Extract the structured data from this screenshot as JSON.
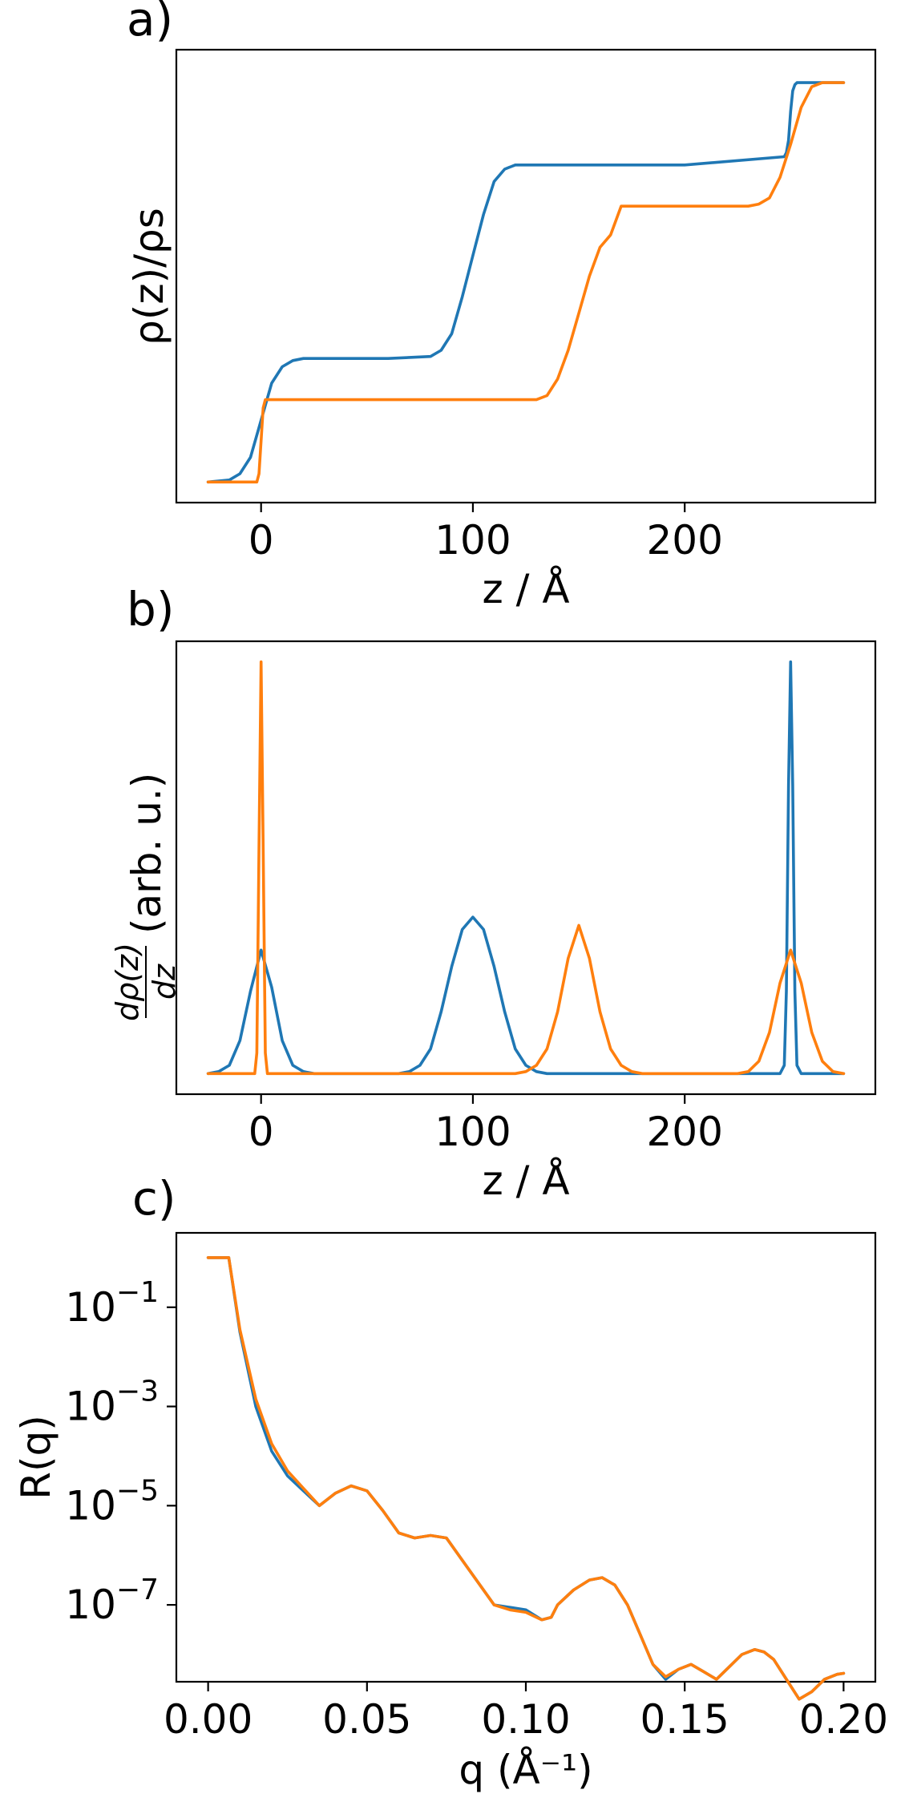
{
  "colors": {
    "series1": "#1f77b4",
    "series2": "#ff7f0e"
  },
  "chart_data": [
    {
      "type": "line",
      "panel_label": "a)",
      "xlabel": "z / Å",
      "ylabel": "ρ(z)/ρs",
      "xlim": [
        -40,
        290
      ],
      "ylim": [
        -0.05,
        1.05
      ],
      "xticks": [
        0,
        100,
        200
      ],
      "y_tick_labels": "none",
      "series": [
        {
          "x": [
            -25,
            -15,
            -10,
            -5,
            0,
            5,
            10,
            15,
            20,
            60,
            80,
            85,
            90,
            95,
            100,
            105,
            110,
            115,
            120,
            200,
            247,
            248,
            249,
            250,
            251,
            252,
            253,
            275
          ],
          "y": [
            0.0,
            0.005,
            0.02,
            0.06,
            0.15,
            0.24,
            0.28,
            0.295,
            0.3,
            0.3,
            0.305,
            0.32,
            0.36,
            0.45,
            0.55,
            0.65,
            0.73,
            0.76,
            0.77,
            0.77,
            0.79,
            0.8,
            0.83,
            0.9,
            0.95,
            0.965,
            0.97,
            0.97
          ]
        },
        {
          "x": [
            -25,
            -2,
            -1,
            0,
            1,
            2,
            5,
            130,
            135,
            140,
            145,
            150,
            155,
            160,
            165,
            170,
            230,
            235,
            240,
            245,
            250,
            255,
            260,
            265,
            275
          ],
          "y": [
            0.0,
            0.0,
            0.02,
            0.1,
            0.18,
            0.2,
            0.2,
            0.2,
            0.21,
            0.25,
            0.32,
            0.41,
            0.5,
            0.57,
            0.6,
            0.67,
            0.67,
            0.675,
            0.69,
            0.74,
            0.82,
            0.91,
            0.96,
            0.97,
            0.97
          ]
        }
      ]
    },
    {
      "type": "line",
      "panel_label": "b)",
      "xlabel": "z / Å",
      "ylabel": "dρ(z)/dz (arb. u.)",
      "ylabel_numerator": "dρ(z)",
      "ylabel_denominator": "dz",
      "ylabel_suffix": "(arb. u.)",
      "xlim": [
        -40,
        290
      ],
      "ylim": [
        -0.05,
        1.05
      ],
      "xticks": [
        0,
        100,
        200
      ],
      "y_tick_labels": "none",
      "series": [
        {
          "x": [
            -25,
            -20,
            -15,
            -10,
            -5,
            0,
            5,
            10,
            15,
            20,
            25,
            65,
            70,
            75,
            80,
            85,
            90,
            95,
            100,
            105,
            110,
            115,
            120,
            125,
            130,
            135,
            245,
            247,
            248,
            249,
            250,
            251,
            252,
            253,
            255,
            275
          ],
          "y": [
            0.0,
            0.005,
            0.02,
            0.08,
            0.2,
            0.3,
            0.21,
            0.08,
            0.02,
            0.005,
            0.0,
            0.0,
            0.005,
            0.02,
            0.06,
            0.15,
            0.26,
            0.35,
            0.38,
            0.35,
            0.26,
            0.15,
            0.06,
            0.02,
            0.005,
            0.0,
            0.0,
            0.02,
            0.2,
            0.7,
            1.0,
            0.7,
            0.2,
            0.02,
            0.0,
            0.0
          ]
        },
        {
          "x": [
            -25,
            -3,
            -2,
            -1,
            0,
            1,
            2,
            3,
            120,
            125,
            130,
            135,
            140,
            145,
            150,
            155,
            160,
            165,
            170,
            175,
            180,
            225,
            230,
            235,
            240,
            245,
            250,
            255,
            260,
            265,
            270,
            275
          ],
          "y": [
            0.0,
            0.0,
            0.05,
            0.55,
            1.0,
            0.55,
            0.05,
            0.0,
            0.0,
            0.005,
            0.02,
            0.06,
            0.15,
            0.28,
            0.36,
            0.28,
            0.15,
            0.06,
            0.02,
            0.005,
            0.0,
            0.0,
            0.005,
            0.03,
            0.1,
            0.22,
            0.3,
            0.22,
            0.1,
            0.03,
            0.005,
            0.0
          ]
        }
      ]
    },
    {
      "type": "line",
      "panel_label": "c)",
      "xlabel": "q (Å⁻¹)",
      "ylabel": "R(q)",
      "yscale": "log",
      "xlim": [
        -0.01,
        0.21
      ],
      "ylim_log10": [
        -8.55,
        0.5
      ],
      "xticks": [
        0.0,
        0.05,
        0.1,
        0.15,
        0.2
      ],
      "xtick_labels": [
        "0.00",
        "0.05",
        "0.10",
        "0.15",
        "0.20"
      ],
      "yticks_log10": [
        -1,
        -3,
        -5,
        -7
      ],
      "series": [
        {
          "x": [
            0.0,
            0.005,
            0.0065,
            0.01,
            0.015,
            0.02,
            0.025,
            0.03,
            0.035,
            0.04,
            0.045,
            0.05,
            0.055,
            0.06,
            0.065,
            0.07,
            0.075,
            0.08,
            0.085,
            0.09,
            0.095,
            0.1,
            0.105,
            0.108,
            0.11,
            0.115,
            0.12,
            0.124,
            0.128,
            0.132,
            0.136,
            0.14,
            0.144,
            0.148,
            0.152,
            0.156,
            0.16,
            0.164,
            0.168,
            0.172,
            0.175,
            0.178,
            0.182,
            0.186,
            0.19,
            0.194,
            0.198,
            0.2
          ],
          "y_log10": [
            0.0,
            0.0,
            0.0,
            -1.5,
            -3.0,
            -3.9,
            -4.4,
            -4.7,
            -5.0,
            -4.75,
            -4.6,
            -4.7,
            -5.1,
            -5.55,
            -5.65,
            -5.6,
            -5.65,
            -6.1,
            -6.55,
            -7.0,
            -7.05,
            -7.1,
            -7.3,
            -7.25,
            -7.0,
            -6.7,
            -6.5,
            -6.45,
            -6.6,
            -7.0,
            -7.6,
            -8.2,
            -8.5,
            -8.3,
            -8.2,
            -8.35,
            -8.5,
            -8.25,
            -8.0,
            -7.9,
            -7.95,
            -8.1,
            -8.5,
            -8.9,
            -8.75,
            -8.5,
            -8.4,
            -8.38
          ]
        },
        {
          "x": [
            0.0,
            0.005,
            0.0065,
            0.01,
            0.015,
            0.02,
            0.025,
            0.03,
            0.035,
            0.04,
            0.045,
            0.05,
            0.055,
            0.06,
            0.065,
            0.07,
            0.075,
            0.08,
            0.085,
            0.09,
            0.095,
            0.1,
            0.105,
            0.108,
            0.11,
            0.115,
            0.12,
            0.124,
            0.128,
            0.132,
            0.136,
            0.14,
            0.144,
            0.148,
            0.152,
            0.156,
            0.16,
            0.164,
            0.168,
            0.172,
            0.175,
            0.178,
            0.182,
            0.186,
            0.19,
            0.194,
            0.198,
            0.2
          ],
          "y_log10": [
            0.0,
            0.0,
            0.0,
            -1.45,
            -2.85,
            -3.75,
            -4.3,
            -4.65,
            -5.0,
            -4.75,
            -4.6,
            -4.7,
            -5.1,
            -5.55,
            -5.65,
            -5.6,
            -5.65,
            -6.1,
            -6.55,
            -7.0,
            -7.1,
            -7.15,
            -7.3,
            -7.25,
            -7.0,
            -6.7,
            -6.5,
            -6.45,
            -6.6,
            -7.0,
            -7.6,
            -8.2,
            -8.45,
            -8.3,
            -8.2,
            -8.35,
            -8.5,
            -8.25,
            -8.0,
            -7.9,
            -7.95,
            -8.1,
            -8.5,
            -8.9,
            -8.75,
            -8.5,
            -8.4,
            -8.38
          ]
        }
      ]
    }
  ]
}
